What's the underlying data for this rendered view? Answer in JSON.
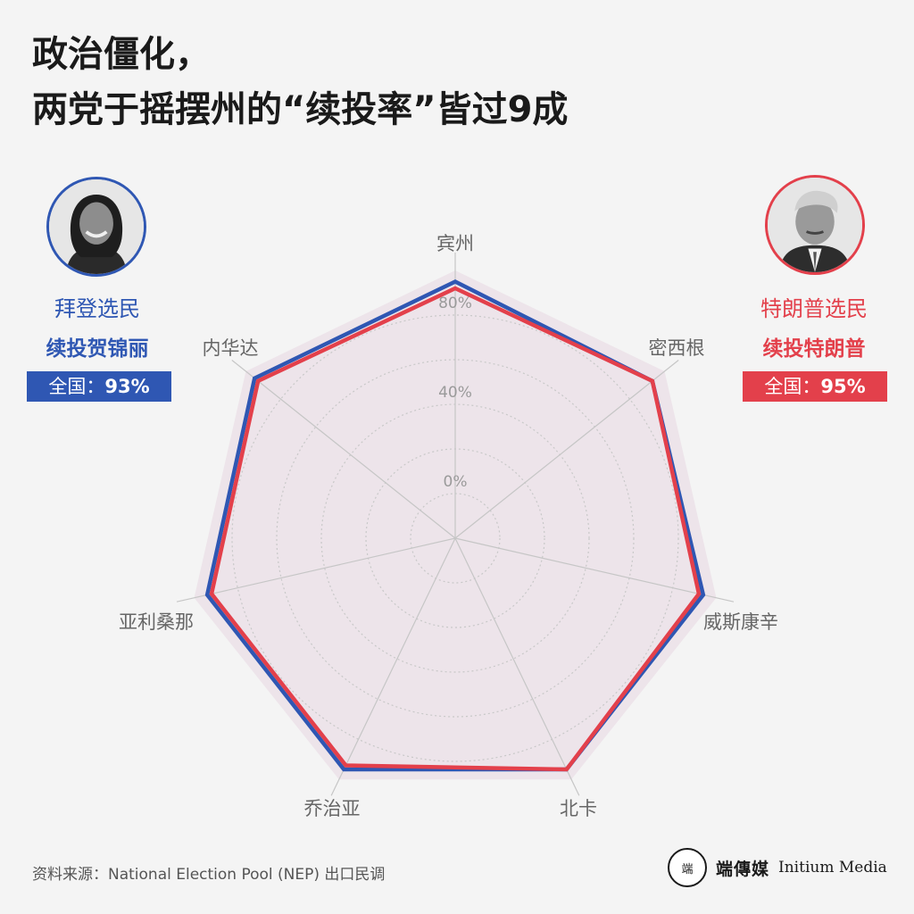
{
  "title": {
    "line1": "政治僵化，",
    "line2": "两党于摇摆州的“续投率”皆过9成"
  },
  "left_group": {
    "label": "拜登选民",
    "sub": "续投贺锦丽",
    "badge_prefix": "全国：",
    "badge_value": "93%",
    "color": "#2f57b3"
  },
  "right_group": {
    "label": "特朗普选民",
    "sub": "续投特朗普",
    "badge_prefix": "全国：",
    "badge_value": "95%",
    "color": "#e3404b"
  },
  "chart_data": {
    "type": "radar",
    "categories": [
      "宾州",
      "密西根",
      "威斯康辛",
      "北卡",
      "乔治亚",
      "亚利桑那",
      "内华达"
    ],
    "series": [
      {
        "name": "续投贺锦丽",
        "color": "#2f57b3",
        "values": [
          95,
          93,
          94,
          95,
          95,
          94,
          95
        ]
      },
      {
        "name": "续投特朗普",
        "color": "#e3404b",
        "values": [
          92,
          93,
          92,
          95,
          93,
          92,
          93
        ]
      }
    ],
    "tick_labels": [
      "0%",
      "40%",
      "80%"
    ],
    "rlim": [
      -20,
      100
    ],
    "grid": true
  },
  "source": "资料来源：National Election Pool (NEP) 出口民调",
  "logo": {
    "mark": "端",
    "cn": "端傳媒",
    "en": "Initium Media"
  }
}
